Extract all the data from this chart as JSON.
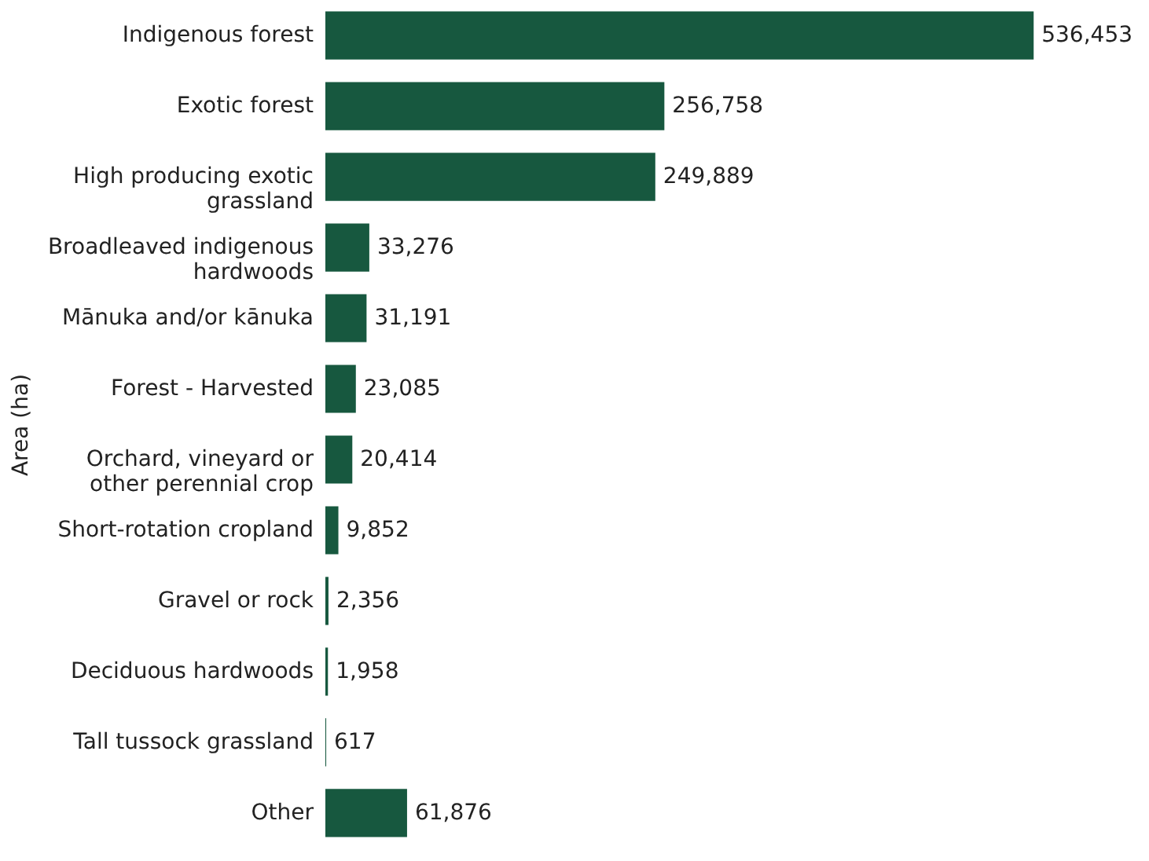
{
  "chart_data": {
    "type": "bar",
    "orientation": "horizontal",
    "ylabel": "Area (ha)",
    "categories": [
      "Indigenous forest",
      "Exotic forest",
      "High producing exotic grassland",
      "Broadleaved indigenous hardwoods",
      "Mānuka and/or kānuka",
      "Forest - Harvested",
      "Orchard, vineyard or other perennial crop",
      "Short-rotation cropland",
      "Gravel or rock",
      "Deciduous hardwoods",
      "Tall tussock grassland",
      "Other"
    ],
    "values": [
      536453,
      256758,
      249889,
      33276,
      31191,
      23085,
      20414,
      9852,
      2356,
      1958,
      617,
      61876
    ],
    "value_labels": [
      "536,453",
      "256,758",
      "249,889",
      "33,276",
      "31,191",
      "23,085",
      "20,414",
      "9,852",
      "2,356",
      "1,958",
      "617",
      "61,876"
    ],
    "color": "#17583f",
    "grid": false
  }
}
